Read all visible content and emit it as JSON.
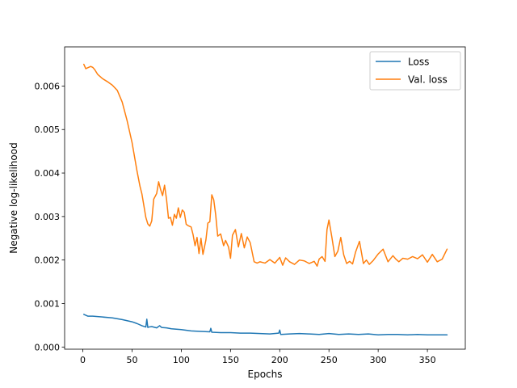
{
  "chart_data": {
    "type": "line",
    "title": "",
    "xlabel": "Epochs",
    "ylabel": "Negative log-likelihood",
    "xlim": [
      -18.5,
      388.5
    ],
    "ylim": [
      -5e-05,
      0.0069
    ],
    "xticks": [
      0,
      50,
      100,
      150,
      200,
      250,
      300,
      350
    ],
    "xtick_labels": [
      "0",
      "50",
      "100",
      "150",
      "200",
      "250",
      "300",
      "350"
    ],
    "yticks": [
      0.0,
      0.001,
      0.002,
      0.003,
      0.004,
      0.005,
      0.006
    ],
    "ytick_labels": [
      "0.000",
      "0.001",
      "0.002",
      "0.003",
      "0.004",
      "0.005",
      "0.006"
    ],
    "grid": false,
    "legend_position": "top-right",
    "series": [
      {
        "name": "Loss",
        "color": "#1f77b4",
        "x": [
          1,
          5,
          10,
          20,
          30,
          40,
          50,
          55,
          60,
          64,
          65,
          66,
          67,
          70,
          75,
          78,
          80,
          85,
          90,
          100,
          110,
          120,
          129,
          130,
          131,
          140,
          150,
          160,
          170,
          180,
          190,
          199,
          200,
          201,
          210,
          220,
          230,
          240,
          250,
          260,
          270,
          280,
          290,
          300,
          310,
          320,
          330,
          340,
          350,
          360,
          370
        ],
        "y": [
          0.00075,
          0.00071,
          0.00071,
          0.00069,
          0.00067,
          0.00063,
          0.00058,
          0.00054,
          0.00049,
          0.00046,
          0.00064,
          0.00045,
          0.00046,
          0.00047,
          0.00044,
          0.00049,
          0.00045,
          0.00044,
          0.00042,
          0.0004,
          0.00037,
          0.00036,
          0.00035,
          0.00043,
          0.00034,
          0.00033,
          0.00033,
          0.00032,
          0.00032,
          0.00031,
          0.0003,
          0.00032,
          0.00039,
          0.00029,
          0.0003,
          0.00031,
          0.0003,
          0.00029,
          0.00031,
          0.00029,
          0.0003,
          0.00029,
          0.0003,
          0.00028,
          0.00029,
          0.00029,
          0.00028,
          0.00029,
          0.00028,
          0.00028,
          0.00028
        ]
      },
      {
        "name": "Val. loss",
        "color": "#ff7f0e",
        "x": [
          1,
          3,
          5,
          8,
          10,
          12,
          15,
          20,
          25,
          30,
          35,
          40,
          45,
          50,
          55,
          58,
          60,
          62,
          64,
          66,
          68,
          70,
          72,
          75,
          77,
          79,
          81,
          83,
          85,
          87,
          89,
          91,
          93,
          95,
          97,
          99,
          101,
          103,
          105,
          107,
          110,
          112,
          114,
          116,
          118,
          120,
          122,
          125,
          127,
          129,
          131,
          133,
          135,
          137,
          140,
          143,
          145,
          148,
          150,
          152,
          155,
          158,
          161,
          164,
          167,
          170,
          174,
          177,
          180,
          185,
          190,
          195,
          200,
          203,
          206,
          210,
          215,
          220,
          225,
          230,
          235,
          238,
          240,
          243,
          246,
          248,
          250,
          253,
          256,
          259,
          262,
          265,
          268,
          271,
          274,
          277,
          281,
          285,
          288,
          291,
          295,
          300,
          305,
          310,
          315,
          318,
          321,
          325,
          330,
          335,
          340,
          345,
          350,
          355,
          360,
          365,
          370
        ],
        "y": [
          0.0065,
          0.0064,
          0.00642,
          0.00645,
          0.00643,
          0.00638,
          0.00627,
          0.00617,
          0.0061,
          0.00602,
          0.0059,
          0.00563,
          0.0052,
          0.0047,
          0.00405,
          0.0037,
          0.00352,
          0.00325,
          0.00298,
          0.00283,
          0.00278,
          0.0029,
          0.0034,
          0.00353,
          0.0038,
          0.00362,
          0.00348,
          0.00372,
          0.0034,
          0.00296,
          0.00298,
          0.0028,
          0.00305,
          0.00296,
          0.0032,
          0.00298,
          0.00315,
          0.0031,
          0.00282,
          0.00279,
          0.00276,
          0.00258,
          0.00233,
          0.00252,
          0.00215,
          0.0025,
          0.00213,
          0.00246,
          0.00285,
          0.00288,
          0.0035,
          0.00338,
          0.00303,
          0.00255,
          0.0026,
          0.00233,
          0.00245,
          0.0023,
          0.00204,
          0.00257,
          0.0027,
          0.0023,
          0.00261,
          0.00228,
          0.00253,
          0.0024,
          0.00196,
          0.00193,
          0.00196,
          0.00193,
          0.00201,
          0.00193,
          0.00206,
          0.00188,
          0.00205,
          0.00196,
          0.0019,
          0.002,
          0.00198,
          0.00192,
          0.00197,
          0.00186,
          0.00202,
          0.00208,
          0.00197,
          0.0027,
          0.00292,
          0.00252,
          0.00208,
          0.0022,
          0.00252,
          0.00212,
          0.00192,
          0.00197,
          0.00191,
          0.00218,
          0.00243,
          0.00192,
          0.002,
          0.0019,
          0.00199,
          0.00214,
          0.00225,
          0.00196,
          0.0021,
          0.00202,
          0.00196,
          0.00204,
          0.00202,
          0.00208,
          0.00203,
          0.00212,
          0.00195,
          0.00213,
          0.00196,
          0.00202,
          0.00225
        ]
      }
    ]
  }
}
